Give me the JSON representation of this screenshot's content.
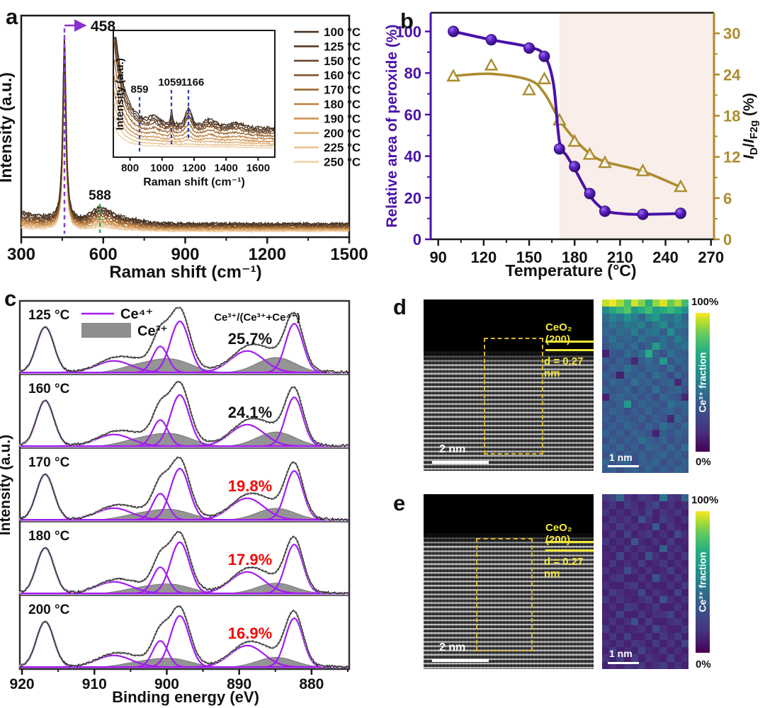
{
  "panels": {
    "a": {
      "label": "a",
      "ylabel": "Intensity (a.u.)",
      "xlabel": "Raman shift (cm⁻¹)",
      "peak_main": "458",
      "peak_shoulder": "588",
      "inset": {
        "ylabel": "Intensity (a.u.)",
        "xlabel": "Raman shift (cm⁻¹)",
        "peaks": [
          "859",
          "1059",
          "1166"
        ]
      }
    },
    "b": {
      "label": "b",
      "ylabel_left": "Relative area of peroxide (%)",
      "xlabel": "Temperature (°C)",
      "right_label_parts": {
        "i1": "I",
        "s1": "D",
        "sl": "/",
        "i2": "I",
        "s2": "F2g",
        "rest": " (%)"
      }
    },
    "c": {
      "label": "c",
      "ylabel": "Intensity (a.u.)",
      "xlabel": "Binding energy (eV)",
      "legend_ce4": "Ce⁴⁺",
      "legend_ce3": "Ce³⁺",
      "ratio_header": "Ce³⁺/(Ce³⁺+Ce⁴⁺)",
      "rows": [
        {
          "temp": "125 °C",
          "pct": "25.7%"
        },
        {
          "temp": "160 °C",
          "pct": "24.1%"
        },
        {
          "temp": "170 °C",
          "pct": "19.8%"
        },
        {
          "temp": "180 °C",
          "pct": "17.9%"
        },
        {
          "temp": "200 °C",
          "pct": "16.9%"
        }
      ]
    },
    "d": {
      "label": "d",
      "phase": "CeO₂ (200)",
      "dspacing": "d = 0.27 nm",
      "scalebar": "2 nm",
      "map_scalebar": "1 nm",
      "cb_top": "100%",
      "cb_bottom": "0%",
      "cb_label": "Ce³⁺ fraction"
    },
    "e": {
      "label": "e",
      "phase": "CeO₂ (200)",
      "dspacing": "d = 0.27 nm",
      "scalebar": "2 nm",
      "map_scalebar": "1 nm",
      "cb_top": "100%",
      "cb_bottom": "0%",
      "cb_label": "Ce³⁺ fraction"
    }
  },
  "chart_data": [
    {
      "id": "raman_main",
      "type": "line",
      "xlabel": "Raman shift (cm⁻¹)",
      "ylabel": "Intensity (a.u.)",
      "xrange": [
        300,
        1500
      ],
      "xticks": [
        300,
        600,
        900,
        1200,
        1500
      ],
      "annotated_peaks": [
        {
          "x": 458,
          "label": "458"
        },
        {
          "x": 588,
          "label": "588"
        }
      ],
      "legend_position": "inside-right",
      "series": [
        {
          "name": "100 °C",
          "color": "#42301f",
          "peak_height": 0.88,
          "baseline": 0.055,
          "bg_left": 0.055,
          "shoulder": 0.05,
          "level": 1.0
        },
        {
          "name": "125 °C",
          "color": "#553b27",
          "peak_height": 0.855,
          "baseline": 0.05,
          "bg_left": 0.05,
          "shoulder": 0.046,
          "level": 0.93
        },
        {
          "name": "150 °C",
          "color": "#6b452c",
          "peak_height": 0.83,
          "baseline": 0.046,
          "bg_left": 0.045,
          "shoulder": 0.042,
          "level": 0.86
        },
        {
          "name": "160 °C",
          "color": "#7d5430",
          "peak_height": 0.805,
          "baseline": 0.042,
          "bg_left": 0.04,
          "shoulder": 0.038,
          "level": 0.8
        },
        {
          "name": "170 °C",
          "color": "#9c6732",
          "peak_height": 0.78,
          "baseline": 0.038,
          "bg_left": 0.035,
          "shoulder": 0.033,
          "level": 0.68
        },
        {
          "name": "180 °C",
          "color": "#bc7e3e",
          "peak_height": 0.76,
          "baseline": 0.034,
          "bg_left": 0.03,
          "shoulder": 0.028,
          "level": 0.55
        },
        {
          "name": "190 °C",
          "color": "#cf9350",
          "peak_height": 0.735,
          "baseline": 0.03,
          "bg_left": 0.026,
          "shoulder": 0.024,
          "level": 0.44
        },
        {
          "name": "200 °C",
          "color": "#dcab72",
          "peak_height": 0.71,
          "baseline": 0.026,
          "bg_left": 0.022,
          "shoulder": 0.02,
          "level": 0.35
        },
        {
          "name": "225 °C",
          "color": "#e7c190",
          "peak_height": 0.685,
          "baseline": 0.022,
          "bg_left": 0.018,
          "shoulder": 0.016,
          "level": 0.26
        },
        {
          "name": "250 °C",
          "color": "#efd3ac",
          "peak_height": 0.66,
          "baseline": 0.018,
          "bg_left": 0.015,
          "shoulder": 0.013,
          "level": 0.18
        }
      ]
    },
    {
      "id": "raman_inset",
      "type": "line",
      "xlabel": "Raman shift (cm⁻¹)",
      "ylabel": "Intensity (a.u.)",
      "xrange": [
        700,
        1700
      ],
      "xticks": [
        800,
        1000,
        1200,
        1400,
        1600
      ],
      "annotated_peaks": [
        {
          "x": 859,
          "label": "859"
        },
        {
          "x": 1059,
          "label": "1059"
        },
        {
          "x": 1166,
          "label": "1166"
        }
      ]
    },
    {
      "id": "peroxide_vs_temperature",
      "type": "scatter-line",
      "xlabel": "Temperature (°C)",
      "xticks": [
        90,
        120,
        150,
        180,
        210,
        240,
        270
      ],
      "yticks_left": [
        0,
        20,
        40,
        60,
        80,
        100
      ],
      "yticks_right": [
        0,
        6,
        12,
        18,
        24,
        30
      ],
      "ylim_left": [
        0,
        109
      ],
      "ylim_right": [
        0,
        33
      ],
      "shade_from_x": 170,
      "colors": {
        "purple": "#4a12a8",
        "gold": "#ab8c2e",
        "shade": "#f9eeea",
        "red_text": "#f40606"
      },
      "x": [
        100,
        125,
        150,
        160,
        170,
        180,
        190,
        200,
        225,
        250
      ],
      "series": [
        {
          "name": "Relative area of peroxide (%)",
          "axis": "left",
          "marker": "sphere",
          "color": "#4a12a8",
          "values": [
            100,
            96,
            92,
            88,
            43.5,
            35,
            22,
            13.5,
            12,
            12.5
          ],
          "trend": [
            [
              100,
              100
            ],
            [
              125,
              96
            ],
            [
              150,
              92.5
            ],
            [
              160,
              88.5
            ],
            [
              166,
              75
            ],
            [
              170,
              47
            ],
            [
              175,
              40
            ],
            [
              180,
              34
            ],
            [
              190,
              21
            ],
            [
              200,
              14
            ],
            [
              212,
              12.3
            ],
            [
              225,
              12
            ],
            [
              250,
              12.4
            ]
          ]
        },
        {
          "name": "ID/IF2g (%)",
          "axis": "right",
          "marker": "triangle",
          "color": "#ab8c2e",
          "values": [
            23.7,
            25.3,
            21.7,
            23.3,
            17.3,
            14.2,
            12.3,
            11.1,
            9.9,
            7.6
          ],
          "trend": [
            [
              100,
              23.8
            ],
            [
              125,
              24.1
            ],
            [
              150,
              23.2
            ],
            [
              160,
              21.3
            ],
            [
              170,
              17.4
            ],
            [
              180,
              14.6
            ],
            [
              190,
              12.5
            ],
            [
              200,
              11.3
            ],
            [
              225,
              9.9
            ],
            [
              250,
              7.6
            ]
          ]
        }
      ]
    },
    {
      "id": "xps_ce3d",
      "type": "line",
      "xlabel": "Binding energy (eV)",
      "ylabel": "Intensity (a.u.)",
      "xrange_reversed": [
        920.3,
        874.8
      ],
      "xticks": [
        920,
        910,
        900,
        890,
        880
      ],
      "legend": [
        {
          "name": "Ce⁴⁺",
          "style": "purple-line"
        },
        {
          "name": "Ce³⁺",
          "style": "gray-fill"
        }
      ],
      "ratio_header": "Ce³⁺/(Ce³⁺+Ce⁴⁺)",
      "ce4_peaks": [
        [
          916.8,
          1.2,
          0.78
        ],
        [
          907.3,
          2.4,
          0.2
        ],
        [
          900.9,
          1.05,
          0.45
        ],
        [
          898.2,
          1.3,
          0.88
        ],
        [
          888.9,
          2.3,
          0.37
        ],
        [
          882.4,
          1.2,
          0.84
        ]
      ],
      "ce3_peaks": [
        [
          904.3,
          2.6,
          0.1
        ],
        [
          899.4,
          2.9,
          0.23
        ],
        [
          884.9,
          2.7,
          0.27
        ]
      ],
      "subpanels": [
        {
          "temp": "125 °C",
          "ratio_pct": 25.7,
          "ratio_color": "black"
        },
        {
          "temp": "160 °C",
          "ratio_pct": 24.1,
          "ratio_color": "black"
        },
        {
          "temp": "170 °C",
          "ratio_pct": 19.8,
          "ratio_color": "red"
        },
        {
          "temp": "180 °C",
          "ratio_pct": 17.9,
          "ratio_color": "red"
        },
        {
          "temp": "200 °C",
          "ratio_pct": 16.9,
          "ratio_color": "red"
        }
      ]
    },
    {
      "id": "heatmap_d",
      "type": "heatmap",
      "label": "Ce³⁺ fraction",
      "scale": {
        "top": "100%",
        "bottom": "0%"
      },
      "cols": 12,
      "values": [
        [
          95,
          99,
          92,
          80,
          96,
          88,
          72,
          90,
          97,
          85,
          93,
          78
        ],
        [
          55,
          68,
          75,
          82,
          60,
          72,
          78,
          64,
          70,
          76,
          68,
          58
        ],
        [
          42,
          52,
          46,
          58,
          50,
          40,
          55,
          62,
          48,
          44,
          52,
          38
        ],
        [
          36,
          46,
          40,
          48,
          44,
          52,
          38,
          46,
          55,
          40,
          48,
          43
        ],
        [
          40,
          34,
          44,
          38,
          50,
          36,
          44,
          48,
          34,
          58,
          40,
          36
        ],
        [
          34,
          44,
          36,
          40,
          34,
          46,
          38,
          34,
          44,
          36,
          50,
          40
        ],
        [
          30,
          38,
          42,
          34,
          44,
          30,
          38,
          64,
          44,
          34,
          40,
          46
        ],
        [
          10,
          34,
          30,
          42,
          34,
          44,
          70,
          38,
          30,
          44,
          36,
          34
        ],
        [
          34,
          28,
          38,
          30,
          12,
          36,
          42,
          34,
          62,
          30,
          40,
          36
        ],
        [
          28,
          38,
          34,
          44,
          36,
          30,
          40,
          36,
          30,
          44,
          28,
          38
        ],
        [
          36,
          30,
          10,
          38,
          34,
          40,
          30,
          44,
          36,
          26,
          40,
          30
        ],
        [
          30,
          40,
          36,
          30,
          44,
          34,
          38,
          30,
          36,
          40,
          12,
          34
        ],
        [
          38,
          30,
          34,
          40,
          28,
          36,
          30,
          44,
          30,
          36,
          40,
          28
        ],
        [
          10,
          36,
          40,
          34,
          38,
          30,
          36,
          26,
          40,
          34,
          30,
          12
        ],
        [
          34,
          30,
          36,
          62,
          30,
          40,
          34,
          36,
          30,
          44,
          36,
          40
        ],
        [
          30,
          40,
          34,
          28,
          36,
          30,
          40,
          30,
          34,
          38,
          30,
          36
        ],
        [
          36,
          28,
          38,
          34,
          30,
          40,
          28,
          36,
          30,
          12,
          40,
          30
        ],
        [
          30,
          36,
          30,
          40,
          34,
          28,
          38,
          30,
          44,
          36,
          30,
          40
        ],
        [
          38,
          30,
          36,
          28,
          40,
          34,
          30,
          10,
          36,
          30,
          40,
          34
        ],
        [
          28,
          38,
          30,
          36,
          30,
          44,
          36,
          30,
          38,
          28,
          34,
          30
        ],
        [
          36,
          30,
          40,
          30,
          36,
          28,
          40,
          36,
          30,
          40,
          30,
          44
        ],
        [
          30,
          40,
          28,
          36,
          30,
          38,
          30,
          34,
          40,
          30,
          36,
          30
        ],
        [
          40,
          30,
          36,
          40,
          26,
          36,
          34,
          40,
          28,
          36,
          30,
          38
        ],
        [
          34,
          38,
          28,
          34,
          38,
          30,
          40,
          30,
          36,
          30,
          40,
          34
        ]
      ]
    },
    {
      "id": "heatmap_e",
      "type": "heatmap",
      "label": "Ce³⁺ fraction",
      "scale": {
        "top": "100%",
        "bottom": "0%"
      },
      "cols": 12,
      "values": [
        [
          18,
          22,
          40,
          15,
          12,
          20,
          16,
          12,
          46,
          18,
          14,
          38
        ],
        [
          12,
          16,
          10,
          20,
          14,
          10,
          18,
          24,
          12,
          16,
          10,
          14
        ],
        [
          16,
          10,
          14,
          10,
          18,
          12,
          22,
          10,
          16,
          12,
          18,
          10
        ],
        [
          10,
          18,
          12,
          16,
          10,
          30,
          14,
          10,
          20,
          14,
          10,
          16
        ],
        [
          14,
          10,
          20,
          12,
          16,
          10,
          12,
          34,
          10,
          18,
          12,
          10
        ],
        [
          10,
          16,
          10,
          22,
          10,
          14,
          18,
          10,
          14,
          10,
          26,
          14
        ],
        [
          18,
          10,
          14,
          10,
          32,
          12,
          10,
          16,
          10,
          20,
          10,
          12
        ],
        [
          10,
          14,
          10,
          18,
          10,
          16,
          12,
          10,
          36,
          12,
          16,
          10
        ],
        [
          12,
          10,
          24,
          10,
          14,
          10,
          30,
          14,
          10,
          16,
          10,
          18
        ],
        [
          10,
          18,
          10,
          14,
          10,
          20,
          10,
          12,
          18,
          10,
          14,
          10
        ],
        [
          16,
          10,
          12,
          28,
          14,
          10,
          16,
          10,
          12,
          22,
          10,
          14
        ],
        [
          10,
          14,
          18,
          10,
          10,
          16,
          10,
          32,
          14,
          10,
          18,
          10
        ],
        [
          14,
          10,
          10,
          16,
          20,
          10,
          14,
          10,
          10,
          16,
          10,
          20
        ],
        [
          10,
          20,
          14,
          10,
          12,
          26,
          10,
          16,
          12,
          10,
          24,
          10
        ],
        [
          18,
          10,
          16,
          12,
          10,
          14,
          20,
          10,
          30,
          14,
          10,
          16
        ],
        [
          10,
          14,
          10,
          20,
          16,
          10,
          12,
          18,
          10,
          10,
          16,
          10
        ],
        [
          12,
          10,
          22,
          10,
          10,
          18,
          10,
          14,
          16,
          24,
          10,
          14
        ],
        [
          10,
          16,
          10,
          14,
          30,
          10,
          20,
          10,
          10,
          14,
          18,
          10
        ],
        [
          20,
          10,
          14,
          10,
          12,
          16,
          10,
          26,
          14,
          10,
          10,
          18
        ],
        [
          10,
          18,
          10,
          22,
          10,
          10,
          16,
          10,
          18,
          12,
          20,
          10
        ],
        [
          14,
          10,
          16,
          10,
          18,
          14,
          10,
          20,
          10,
          16,
          10,
          24
        ],
        [
          10,
          20,
          10,
          14,
          10,
          24,
          12,
          10,
          16,
          10,
          14,
          10
        ],
        [
          16,
          10,
          18,
          10,
          20,
          10,
          16,
          12,
          10,
          22,
          10,
          14
        ],
        [
          10,
          14,
          10,
          16,
          12,
          18,
          10,
          14,
          20,
          10,
          16,
          10
        ]
      ]
    }
  ]
}
